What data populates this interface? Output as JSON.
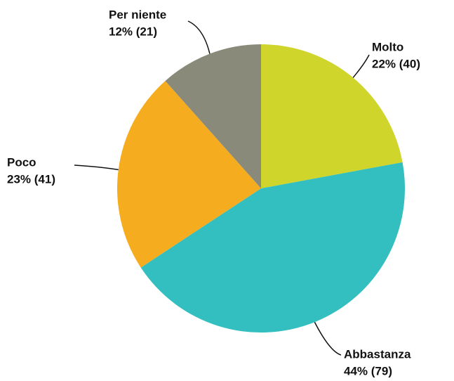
{
  "chart_data": {
    "type": "pie",
    "categories": [
      "Molto",
      "Abbastanza",
      "Poco",
      "Per niente"
    ],
    "values": [
      40,
      79,
      41,
      21
    ],
    "value_labels": [
      "22% (40)",
      "44% (79)",
      "23% (41)",
      "12% (21)"
    ],
    "colors": [
      "#cfd52a",
      "#33bec0",
      "#f5ad1f",
      "#8a8a7a"
    ]
  }
}
